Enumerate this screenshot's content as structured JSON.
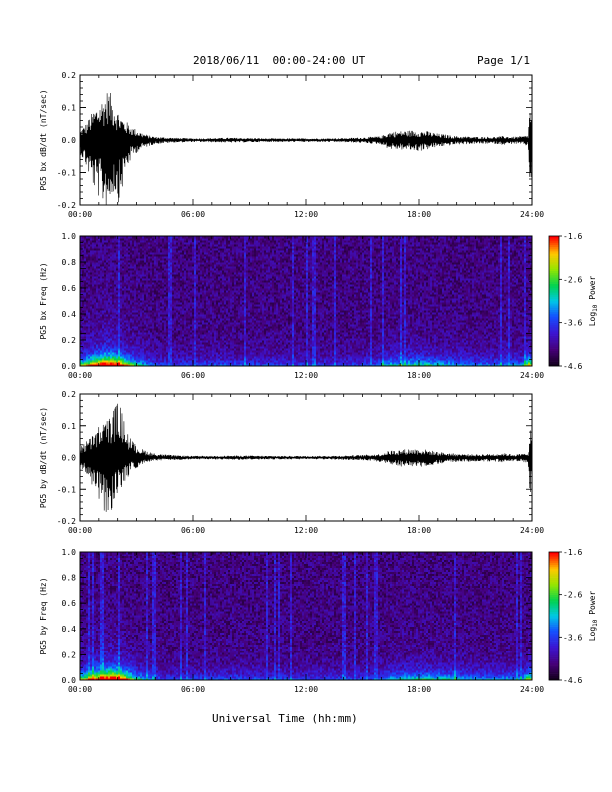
{
  "header": {
    "title": "2018/06/11  00:00-24:00 UT",
    "page": "Page 1/1"
  },
  "footer": {
    "xlabel": "Universal Time (hh:mm)"
  },
  "chart_data": [
    {
      "type": "line",
      "ylabel": "PG5 bx dB/dt (nT/sec)",
      "xticks": [
        "00:00",
        "06:00",
        "12:00",
        "18:00",
        "24:00"
      ],
      "xlim": [
        0,
        24
      ],
      "ylim": [
        -0.2,
        0.2
      ],
      "yticks": [
        -0.2,
        -0.1,
        0.0,
        0.1,
        0.2
      ],
      "yticklabels": [
        "-0.2",
        "-0.1",
        "0.0",
        "0.1",
        "0.2"
      ],
      "envelope": {
        "x": [
          0,
          0.3,
          0.8,
          1.2,
          1.5,
          1.8,
          2.1,
          2.4,
          2.8,
          3.2,
          3.6,
          4.0,
          5,
          6,
          7,
          8,
          9,
          10,
          11,
          12,
          13,
          14,
          15,
          16,
          16.4,
          17,
          17.5,
          18,
          18.4,
          19,
          20,
          21,
          22,
          22.5,
          23,
          23.5,
          23.8,
          23.9,
          24
        ],
        "max": [
          0.03,
          0.05,
          0.1,
          0.13,
          0.16,
          0.12,
          0.08,
          0.06,
          0.04,
          0.025,
          0.015,
          0.01,
          0.007,
          0.005,
          0.006,
          0.007,
          0.006,
          0.005,
          0.005,
          0.005,
          0.005,
          0.006,
          0.008,
          0.012,
          0.025,
          0.028,
          0.03,
          0.03,
          0.028,
          0.02,
          0.012,
          0.01,
          0.01,
          0.012,
          0.01,
          0.012,
          0.015,
          0.13,
          0.04
        ],
        "min": [
          -0.04,
          -0.08,
          -0.16,
          -0.2,
          -0.21,
          -0.16,
          -0.2,
          -0.1,
          -0.05,
          -0.03,
          -0.02,
          -0.012,
          -0.008,
          -0.006,
          -0.007,
          -0.008,
          -0.007,
          -0.006,
          -0.006,
          -0.006,
          -0.006,
          -0.007,
          -0.009,
          -0.014,
          -0.028,
          -0.03,
          -0.032,
          -0.035,
          -0.03,
          -0.022,
          -0.014,
          -0.012,
          -0.012,
          -0.015,
          -0.012,
          -0.014,
          -0.02,
          -0.18,
          -0.06
        ]
      }
    },
    {
      "type": "heatmap",
      "ylabel": "PG5 bx Freq (Hz)",
      "xticks": [
        "00:00",
        "06:00",
        "12:00",
        "18:00",
        "24:00"
      ],
      "xlim": [
        0,
        24
      ],
      "ylim": [
        0,
        1.0
      ],
      "yticks": [
        0.0,
        0.2,
        0.4,
        0.6,
        0.8,
        1.0
      ],
      "yticklabels": [
        "0.0",
        "0.2",
        "0.4",
        "0.6",
        "0.8",
        "1.0"
      ],
      "colorbar": {
        "label": "Log10 Power",
        "label_main": "Log",
        "label_sub": "10",
        "label_tail": " Power",
        "min": -4.6,
        "max": -1.6,
        "ticks": [
          -1.6,
          -2.6,
          -3.6,
          -4.6
        ],
        "ticklabels": [
          "-1.6",
          "-2.6",
          "-3.6",
          "-4.6"
        ]
      },
      "activity": [
        [
          0,
          0.6
        ],
        [
          0.8,
          1.0
        ],
        [
          1.3,
          1.3
        ],
        [
          1.8,
          1.2
        ],
        [
          2.3,
          0.9
        ],
        [
          2.8,
          0.6
        ],
        [
          3.5,
          0.35
        ],
        [
          4.5,
          0.2
        ],
        [
          8,
          0.25
        ],
        [
          12,
          0.2
        ],
        [
          15.5,
          0.22
        ],
        [
          16.5,
          0.45
        ],
        [
          18,
          0.5
        ],
        [
          19.5,
          0.4
        ],
        [
          21,
          0.3
        ],
        [
          23.5,
          0.35
        ],
        [
          23.9,
          0.9
        ],
        [
          24,
          0.5
        ]
      ]
    },
    {
      "type": "line",
      "ylabel": "PG5 by dB/dt (nT/sec)",
      "xticks": [
        "00:00",
        "06:00",
        "12:00",
        "18:00",
        "24:00"
      ],
      "xlim": [
        0,
        24
      ],
      "ylim": [
        -0.2,
        0.2
      ],
      "yticks": [
        -0.2,
        -0.1,
        0.0,
        0.1,
        0.2
      ],
      "yticklabels": [
        "-0.2",
        "-0.1",
        "0.0",
        "0.1",
        "0.2"
      ],
      "envelope": {
        "x": [
          0,
          0.3,
          0.8,
          1.2,
          1.5,
          1.8,
          2.1,
          2.4,
          2.8,
          3.2,
          3.6,
          4.0,
          5,
          6,
          7,
          8,
          9,
          10,
          11,
          12,
          13,
          14,
          15,
          16,
          16.4,
          17,
          17.5,
          18,
          18.4,
          19,
          20,
          21,
          22,
          22.5,
          23,
          23.5,
          23.8,
          23.9,
          24
        ],
        "max": [
          0.04,
          0.05,
          0.08,
          0.12,
          0.12,
          0.16,
          0.18,
          0.1,
          0.05,
          0.03,
          0.02,
          0.012,
          0.007,
          0.005,
          0.005,
          0.006,
          0.006,
          0.005,
          0.005,
          0.005,
          0.005,
          0.006,
          0.008,
          0.012,
          0.022,
          0.025,
          0.028,
          0.028,
          0.025,
          0.018,
          0.012,
          0.01,
          0.012,
          0.014,
          0.01,
          0.012,
          0.015,
          0.13,
          0.03
        ],
        "min": [
          -0.03,
          -0.06,
          -0.1,
          -0.16,
          -0.2,
          -0.15,
          -0.12,
          -0.08,
          -0.04,
          -0.025,
          -0.015,
          -0.01,
          -0.008,
          -0.006,
          -0.006,
          -0.007,
          -0.007,
          -0.006,
          -0.006,
          -0.006,
          -0.006,
          -0.007,
          -0.009,
          -0.014,
          -0.026,
          -0.028,
          -0.03,
          -0.032,
          -0.028,
          -0.02,
          -0.014,
          -0.012,
          -0.013,
          -0.015,
          -0.012,
          -0.014,
          -0.02,
          -0.14,
          -0.05
        ]
      }
    },
    {
      "type": "heatmap",
      "ylabel": "PG5 by Freq (Hz)",
      "xticks": [
        "00:00",
        "06:00",
        "12:00",
        "18:00",
        "24:00"
      ],
      "xlim": [
        0,
        24
      ],
      "ylim": [
        0,
        1.0
      ],
      "yticks": [
        0.0,
        0.2,
        0.4,
        0.6,
        0.8,
        1.0
      ],
      "yticklabels": [
        "0.0",
        "0.2",
        "0.4",
        "0.6",
        "0.8",
        "1.0"
      ],
      "colorbar": {
        "label": "Log10 Power",
        "label_main": "Log",
        "label_sub": "10",
        "label_tail": " Power",
        "min": -4.6,
        "max": -1.6,
        "ticks": [
          -1.6,
          -2.6,
          -3.6,
          -4.6
        ],
        "ticklabels": [
          "-1.6",
          "-2.6",
          "-3.6",
          "-4.6"
        ]
      },
      "activity": [
        [
          0,
          0.6
        ],
        [
          0.8,
          0.9
        ],
        [
          1.3,
          1.1
        ],
        [
          1.8,
          1.3
        ],
        [
          2.3,
          1.0
        ],
        [
          2.8,
          0.6
        ],
        [
          3.5,
          0.35
        ],
        [
          4.5,
          0.2
        ],
        [
          8,
          0.25
        ],
        [
          12,
          0.2
        ],
        [
          15.5,
          0.22
        ],
        [
          16.5,
          0.4
        ],
        [
          18,
          0.5
        ],
        [
          19.5,
          0.45
        ],
        [
          21,
          0.35
        ],
        [
          23.5,
          0.35
        ],
        [
          23.9,
          0.8
        ],
        [
          24,
          0.5
        ]
      ]
    }
  ]
}
